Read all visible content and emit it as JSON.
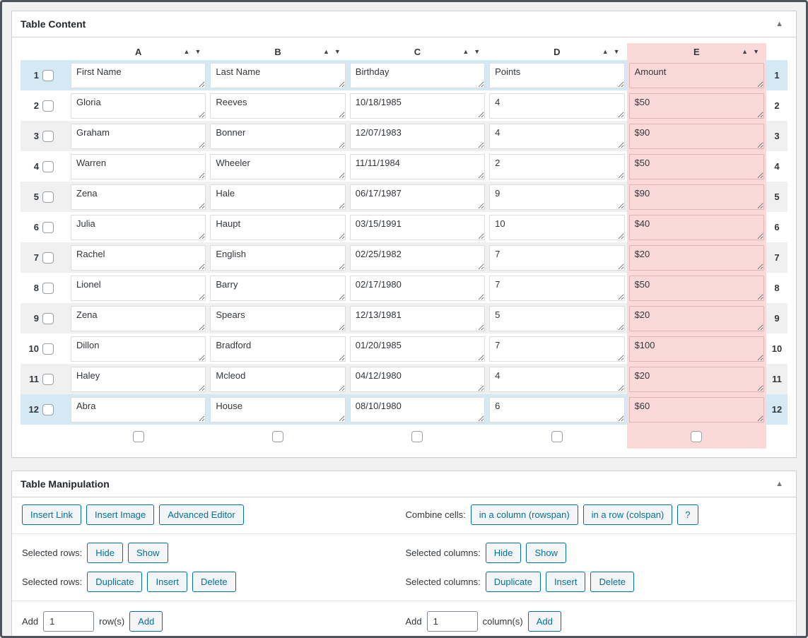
{
  "content_panel": {
    "title": "Table Content",
    "collapse_icon": "▲",
    "sort_asc_icon": "▲",
    "sort_desc_icon": "▼",
    "columns": [
      "A",
      "B",
      "C",
      "D",
      "E"
    ],
    "selected_column": "E",
    "selected_column_index": 4,
    "rows": [
      {
        "num": "1",
        "cells": [
          "First Name",
          "Last Name",
          "Birthday",
          "Points",
          "Amount"
        ]
      },
      {
        "num": "2",
        "cells": [
          "Gloria",
          "Reeves",
          "10/18/1985",
          "4",
          "$50"
        ]
      },
      {
        "num": "3",
        "cells": [
          "Graham",
          "Bonner",
          "12/07/1983",
          "4",
          "$90"
        ]
      },
      {
        "num": "4",
        "cells": [
          "Warren",
          "Wheeler",
          "11/11/1984",
          "2",
          "$50"
        ]
      },
      {
        "num": "5",
        "cells": [
          "Zena",
          "Hale",
          "06/17/1987",
          "9",
          "$90"
        ]
      },
      {
        "num": "6",
        "cells": [
          "Julia",
          "Haupt",
          "03/15/1991",
          "10",
          "$40"
        ]
      },
      {
        "num": "7",
        "cells": [
          "Rachel",
          "English",
          "02/25/1982",
          "7",
          "$20"
        ]
      },
      {
        "num": "8",
        "cells": [
          "Lionel",
          "Barry",
          "02/17/1980",
          "7",
          "$50"
        ]
      },
      {
        "num": "9",
        "cells": [
          "Zena",
          "Spears",
          "12/13/1981",
          "5",
          "$20"
        ]
      },
      {
        "num": "10",
        "cells": [
          "Dillon",
          "Bradford",
          "01/20/1985",
          "7",
          "$100"
        ]
      },
      {
        "num": "11",
        "cells": [
          "Haley",
          "Mcleod",
          "04/12/1980",
          "4",
          "$20"
        ]
      },
      {
        "num": "12",
        "cells": [
          "Abra",
          "House",
          "08/10/1980",
          "6",
          "$60"
        ]
      }
    ]
  },
  "manipulation_panel": {
    "title": "Table Manipulation",
    "collapse_icon": "▲",
    "insert_link": "Insert Link",
    "insert_image": "Insert Image",
    "advanced_editor": "Advanced Editor",
    "combine_cells_label": "Combine cells:",
    "rowspan_button": "in a column (rowspan)",
    "colspan_button": "in a row (colspan)",
    "help_button": "?",
    "selected_rows_label": "Selected rows:",
    "selected_columns_label": "Selected columns:",
    "hide_button": "Hide",
    "show_button": "Show",
    "duplicate_button": "Duplicate",
    "insert_button": "Insert",
    "delete_button": "Delete",
    "add_label": "Add",
    "add_rows_value": "1",
    "add_columns_value": "1",
    "rows_suffix": "row(s)",
    "columns_suffix": "column(s)",
    "add_button": "Add"
  },
  "colors": {
    "selected_column_bg": "#fbd9d9",
    "head_foot_row_bg": "#d5e9f5",
    "alt_row_bg": "#f0f0f1",
    "button_accent": "#0071a1",
    "panel_border": "#ccd0d4",
    "page_bg": "#f1f1f1"
  }
}
